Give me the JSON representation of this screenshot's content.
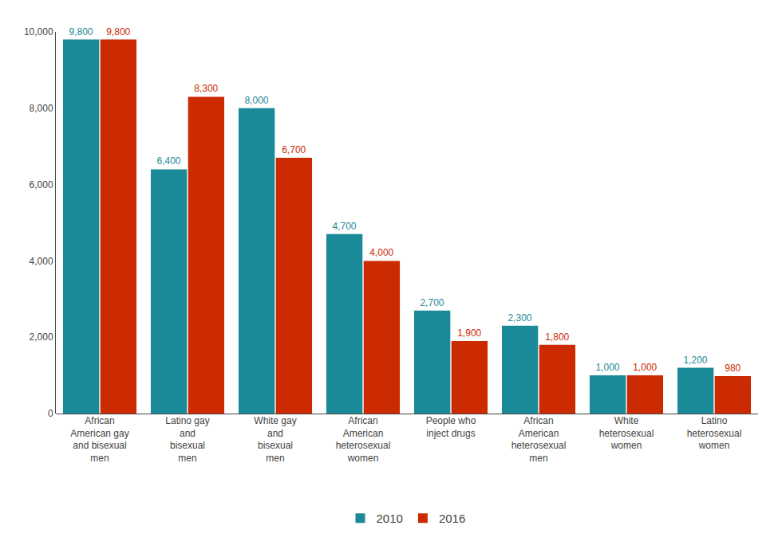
{
  "chart_data": {
    "type": "bar",
    "categories": [
      "African\nAmerican gay\nand bisexual\nmen",
      "Latino gay\nand\nbisexual\nmen",
      "White gay\nand\nbisexual\nmen",
      "African\nAmerican\nheterosexual\nwomen",
      "People who\ninject drugs",
      "African\nAmerican\nheterosexual\nmen",
      "White\nheterosexual\nwomen",
      "Latino\nheterosexual\nwomen"
    ],
    "series": [
      {
        "name": "2010",
        "color": "#1a8a99",
        "values": [
          9800,
          6400,
          8000,
          4700,
          2700,
          2300,
          1000,
          1200
        ],
        "value_labels": [
          "9,800",
          "6,400",
          "8,000",
          "4,700",
          "2,700",
          "2,300",
          "1,000",
          "1,200"
        ]
      },
      {
        "name": "2016",
        "color": "#cc2a00",
        "values": [
          9800,
          8300,
          6700,
          4000,
          1900,
          1800,
          1000,
          980
        ],
        "value_labels": [
          "9,800",
          "8,300",
          "6,700",
          "4,000",
          "1,900",
          "1,800",
          "1,000",
          "980"
        ]
      }
    ],
    "ylim": [
      0,
      10000
    ],
    "yticks": [
      0,
      {
        "value": 2000,
        "label": "2,000"
      },
      {
        "value": 4000,
        "label": "4,000"
      },
      {
        "value": 6000,
        "label": "6,000"
      },
      {
        "value": 8000,
        "label": "8,000"
      },
      {
        "value": 10000,
        "label": "10,000"
      }
    ],
    "grid": false,
    "legend": "bottom",
    "data_labels": true
  }
}
